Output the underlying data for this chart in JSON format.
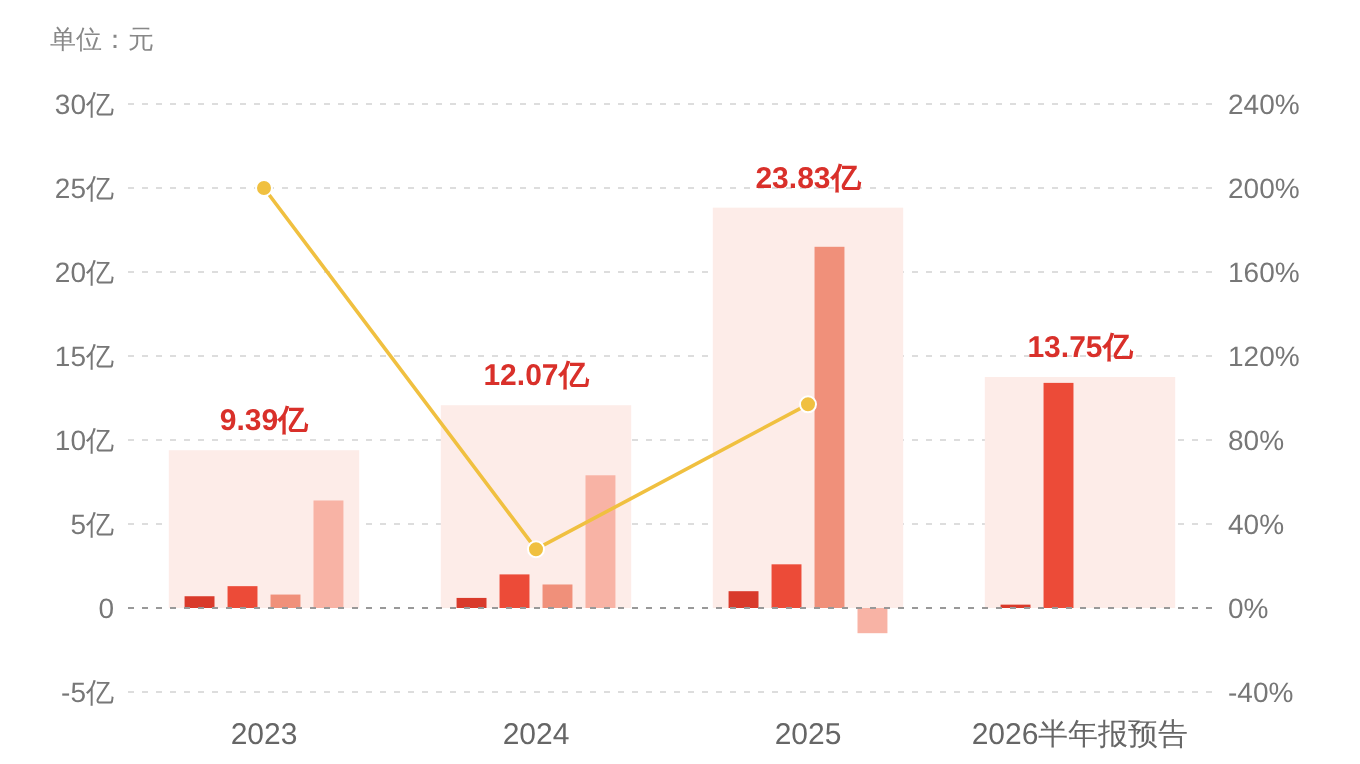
{
  "chart_data": {
    "type": "bar",
    "ylabel": "单位：元",
    "categories": [
      "2023",
      "2024",
      "2025",
      "2026半年报预告"
    ],
    "series": [
      {
        "color": "#fdece8",
        "values": [
          9.39,
          12.07,
          23.83,
          13.75
        ],
        "value_labels": [
          "9.39亿",
          "12.07亿",
          "23.83亿",
          "13.75亿"
        ]
      },
      {
        "color": "#d93a2b",
        "values": [
          0.7,
          0.6,
          1,
          0.2
        ]
      },
      {
        "color": "#ec4b38",
        "values": [
          1.3,
          2,
          2.6,
          13.4
        ]
      },
      {
        "color": "#f0907a",
        "values": [
          0.8,
          1.4,
          21.5,
          null
        ]
      },
      {
        "color": "#f8b3a5",
        "values": [
          6.4,
          7.9,
          -1.5,
          null
        ]
      },
      {
        "type": "line",
        "axis": "y2",
        "color": "#f0c040",
        "values": [
          200,
          28,
          97,
          null
        ]
      }
    ],
    "ylim": [
      -5,
      30
    ],
    "yticks": [
      {
        "value": -5,
        "label": "-5亿"
      },
      0,
      {
        "value": 5,
        "label": "5亿"
      },
      {
        "value": 10,
        "label": "10亿"
      },
      {
        "value": 15,
        "label": "15亿"
      },
      {
        "value": 20,
        "label": "20亿"
      },
      {
        "value": 25,
        "label": "25亿"
      },
      {
        "value": 30,
        "label": "30亿"
      }
    ],
    "y2lim": [
      -40,
      240
    ],
    "y2ticks": [
      {
        "value": -40,
        "label": "-40%"
      },
      {
        "value": 0,
        "label": "0%"
      },
      {
        "value": 40,
        "label": "40%"
      },
      {
        "value": 80,
        "label": "80%"
      },
      {
        "value": 120,
        "label": "120%"
      },
      {
        "value": 160,
        "label": "160%"
      },
      {
        "value": 200,
        "label": "200%"
      },
      {
        "value": 240,
        "label": "240%"
      }
    ],
    "ref_lines": [
      {
        "axis": "y",
        "value": 0,
        "color": "#999999",
        "line_style": "dashed"
      }
    ],
    "grid": "y",
    "marker": "circle"
  }
}
